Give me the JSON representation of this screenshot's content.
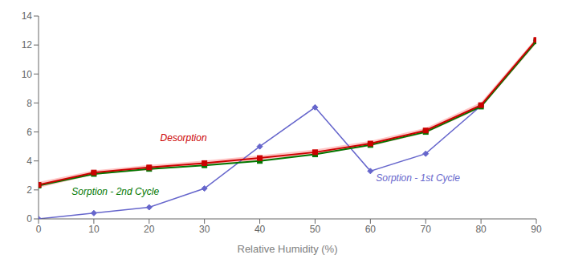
{
  "chart_data": {
    "type": "line",
    "xlabel": "Relative Humidity (%)",
    "x": [
      0,
      10,
      20,
      30,
      40,
      50,
      60,
      70,
      80,
      90
    ],
    "xlim": [
      0,
      90
    ],
    "xticks": [
      0,
      10,
      20,
      30,
      40,
      50,
      60,
      70,
      80,
      90
    ],
    "ylim": [
      0,
      14
    ],
    "yticks": [
      0,
      2,
      4,
      6,
      8,
      10,
      12,
      14
    ],
    "series": [
      {
        "name": "Sorption - 1st Cycle",
        "color": "#6666cc",
        "marker": "diamond",
        "values": [
          0,
          0.4,
          0.8,
          2.1,
          5.0,
          7.7,
          3.3,
          4.5,
          7.8,
          12.3
        ]
      },
      {
        "name": "Sorption - 2nd Cycle",
        "color": "#007700",
        "marker": "square",
        "values": [
          2.3,
          3.1,
          3.45,
          3.7,
          4.0,
          4.45,
          5.1,
          6.0,
          7.75,
          12.25
        ]
      },
      {
        "name": "Desorption",
        "color": "#cc0000",
        "marker": "square",
        "values": [
          2.35,
          3.2,
          3.55,
          3.85,
          4.2,
          4.6,
          5.2,
          6.1,
          7.85,
          12.35
        ],
        "band_lower": [
          2.15,
          3.05,
          3.38,
          3.68,
          4.02,
          4.42,
          5.02,
          5.92,
          7.65,
          12.1
        ],
        "band_upper": [
          2.55,
          3.35,
          3.72,
          4.02,
          4.38,
          4.78,
          5.38,
          6.28,
          8.05,
          12.5
        ],
        "band_color": "#ffbbbb"
      }
    ],
    "annotations": [
      {
        "text": "Desorption",
        "x": 22,
        "y": 5.6,
        "color": "#cc0000"
      },
      {
        "text": "Sorption - 2nd Cycle",
        "x": 6,
        "y": 1.9,
        "color": "#007700"
      },
      {
        "text": "Sorption - 1st Cycle",
        "x": 61,
        "y": 2.85,
        "color": "#6666cc"
      }
    ]
  }
}
